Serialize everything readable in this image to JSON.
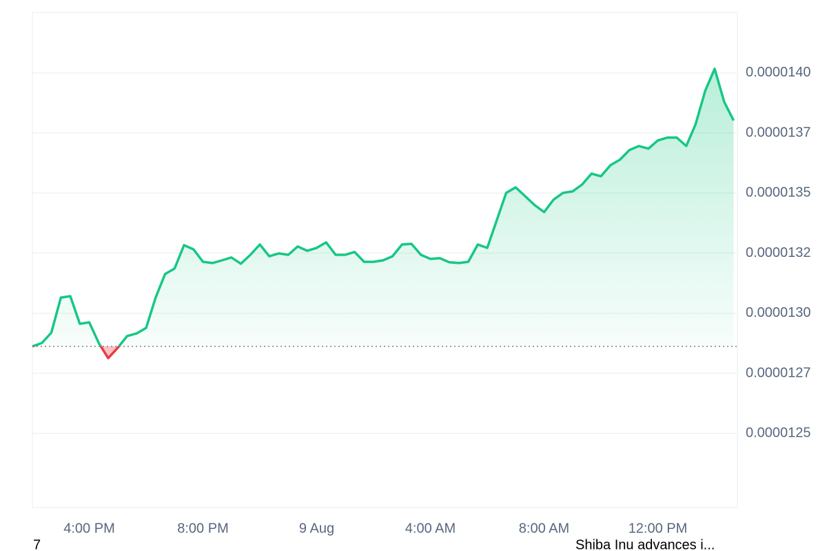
{
  "chart_data": {
    "type": "line",
    "categories": [
      null,
      null,
      null,
      null,
      null,
      null,
      "4:00 PM",
      null,
      null,
      null,
      null,
      null,
      null,
      null,
      null,
      null,
      null,
      null,
      "8:00 PM",
      null,
      null,
      null,
      null,
      null,
      null,
      null,
      null,
      null,
      null,
      null,
      "9 Aug",
      null,
      null,
      null,
      null,
      null,
      null,
      null,
      null,
      null,
      null,
      null,
      "4:00 AM",
      null,
      null,
      null,
      null,
      null,
      null,
      null,
      null,
      null,
      null,
      null,
      "8:00 AM",
      null,
      null,
      null,
      null,
      null,
      null,
      null,
      null,
      null,
      null,
      null,
      "12:00 PM",
      null,
      null,
      null,
      null,
      null,
      null,
      null,
      null
    ],
    "series": [
      {
        "color": "#16c784",
        "negative_color": "#ea3943",
        "values": [
          1.2862e-05,
          1.2876e-05,
          1.2919e-05,
          1.3065e-05,
          1.3071e-05,
          1.2956e-05,
          1.2962e-05,
          1.2876e-05,
          1.2813e-05,
          1.2856e-05,
          1.2905e-05,
          1.2916e-05,
          1.2939e-05,
          1.3065e-05,
          1.3163e-05,
          1.3186e-05,
          1.3283e-05,
          1.3266e-05,
          1.3214e-05,
          1.3209e-05,
          1.322e-05,
          1.3232e-05,
          1.3206e-05,
          1.3243e-05,
          1.3286e-05,
          1.3237e-05,
          1.3249e-05,
          1.3243e-05,
          1.3278e-05,
          1.326e-05,
          1.3272e-05,
          1.3295e-05,
          1.3243e-05,
          1.3243e-05,
          1.3255e-05,
          1.3214e-05,
          1.3214e-05,
          1.322e-05,
          1.3237e-05,
          1.3286e-05,
          1.3289e-05,
          1.3243e-05,
          1.3226e-05,
          1.3229e-05,
          1.3212e-05,
          1.3209e-05,
          1.3214e-05,
          1.3286e-05,
          1.3272e-05,
          1.3387e-05,
          1.3501e-05,
          1.3524e-05,
          1.3487e-05,
          1.345e-05,
          1.3421e-05,
          1.3473e-05,
          1.3501e-05,
          1.3507e-05,
          1.3535e-05,
          1.3581e-05,
          1.357e-05,
          1.3616e-05,
          1.3639e-05,
          1.3679e-05,
          1.3696e-05,
          1.3685e-05,
          1.3719e-05,
          1.3731e-05,
          1.3731e-05,
          1.3696e-05,
          1.3788e-05,
          1.3926e-05,
          1.4017e-05,
          1.388e-05,
          1.3802e-05
        ]
      }
    ],
    "baseline": 1.2862e-05,
    "ylim": [
      1.2191e-05,
      1.4252e-05
    ],
    "yticks": [
      {
        "value": 1.4e-05,
        "label": "0.0000140"
      },
      {
        "value": 1.375e-05,
        "label": "0.0000137"
      },
      {
        "value": 1.35e-05,
        "label": "0.0000135"
      },
      {
        "value": 1.325e-05,
        "label": "0.0000132"
      },
      {
        "value": 1.3e-05,
        "label": "0.0000130"
      },
      {
        "value": 1.275e-05,
        "label": "0.0000127"
      },
      {
        "value": 1.25e-05,
        "label": "0.0000125"
      }
    ],
    "grid": true
  },
  "footer": {
    "left": "7",
    "right": "Shiba Inu advances i..."
  }
}
